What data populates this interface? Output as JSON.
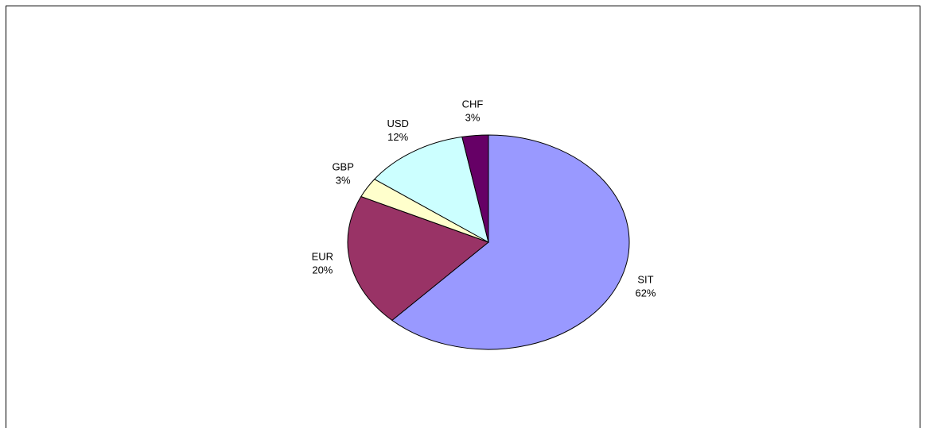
{
  "chart_data": {
    "type": "pie",
    "categories": [
      "SIT",
      "EUR",
      "GBP",
      "USD",
      "CHF"
    ],
    "values": [
      62,
      20,
      3,
      12,
      3
    ],
    "value_labels": [
      "62%",
      "20%",
      "3%",
      "12%",
      "3%"
    ],
    "colors": [
      "#9999ff",
      "#993366",
      "#ffffcc",
      "#ccffff",
      "#660066"
    ]
  }
}
